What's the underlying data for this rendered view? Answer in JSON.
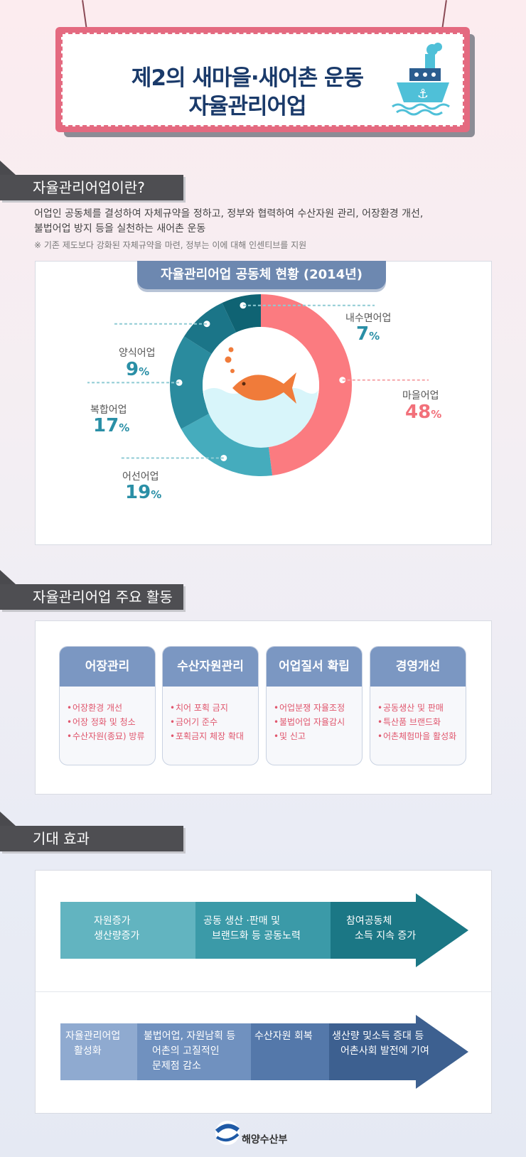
{
  "title": {
    "line1": "제2의 새마을·새어촌 운동",
    "line2": "자율관리어업"
  },
  "section1": {
    "header": "자율관리어업이란?",
    "desc_line1": "어업인 공동체를 결성하여 자체규약을 정하고, 정부와 협력하여 수산자원 관리, 어장환경 개선,",
    "desc_line2": "불법어업 방지 등을 실천하는 새어촌 운동",
    "note": "※ 기존 제도보다 강화된 자체규약을 마련, 정부는 이에 대해 인센티브를 지원"
  },
  "chart_data": {
    "type": "pie",
    "title": "자율관리어업 공동체 현황 (2014년)",
    "slices": [
      {
        "name": "마을어업",
        "value": 48,
        "label": "48",
        "color": "#fb7b80"
      },
      {
        "name": "어선어업",
        "value": 19,
        "label": "19",
        "color": "#45acbd"
      },
      {
        "name": "복합어업",
        "value": 17,
        "label": "17",
        "color": "#2a8b9e"
      },
      {
        "name": "양식어업",
        "value": 9,
        "label": "9",
        "color": "#1b7588"
      },
      {
        "name": "내수면어업",
        "value": 7,
        "label": "7",
        "color": "#0f6373"
      }
    ],
    "unit": "%"
  },
  "section2": {
    "header": "자율관리어업 주요 활동",
    "cards": [
      {
        "title": "어장관리",
        "items": [
          "어장환경 개선",
          "어장 정화 및 청소",
          "수산자원(종묘) 방류"
        ]
      },
      {
        "title": "수산자원관리",
        "items": [
          "치어 포획 금지",
          "금어기 준수",
          "포획금지 체장 확대"
        ]
      },
      {
        "title": "어업질서 확립",
        "items": [
          "어업분쟁 자율조정",
          "불법어업 자율감시",
          "및 신고"
        ]
      },
      {
        "title": "경영개선",
        "items": [
          "공동생산 및 판매",
          "특산품 브랜드화",
          "어촌체험마을 활성화"
        ]
      }
    ]
  },
  "section3": {
    "header": "기대 효과",
    "row1": [
      {
        "l1": "자원증가",
        "l2": "생산량증가"
      },
      {
        "l1": "공동 생산 ·판매 및",
        "l2": "브랜드화 등 공동노력"
      },
      {
        "l1": "참여공동체",
        "l2": "소득 지속 증가"
      }
    ],
    "row2": [
      {
        "l1": "자율관리어업",
        "l2": "활성화",
        "l3": ""
      },
      {
        "l1": "불법어업, 자원남획 등",
        "l2": "어촌의 고질적인",
        "l3": "문제점 감소"
      },
      {
        "l1": "수산자원 회복",
        "l2": "",
        "l3": ""
      },
      {
        "l1": "생산량 및소득 증대 등",
        "l2": "어촌사회 발전에 기여",
        "l3": ""
      }
    ]
  },
  "footer": {
    "ministry": "해양수산부"
  }
}
